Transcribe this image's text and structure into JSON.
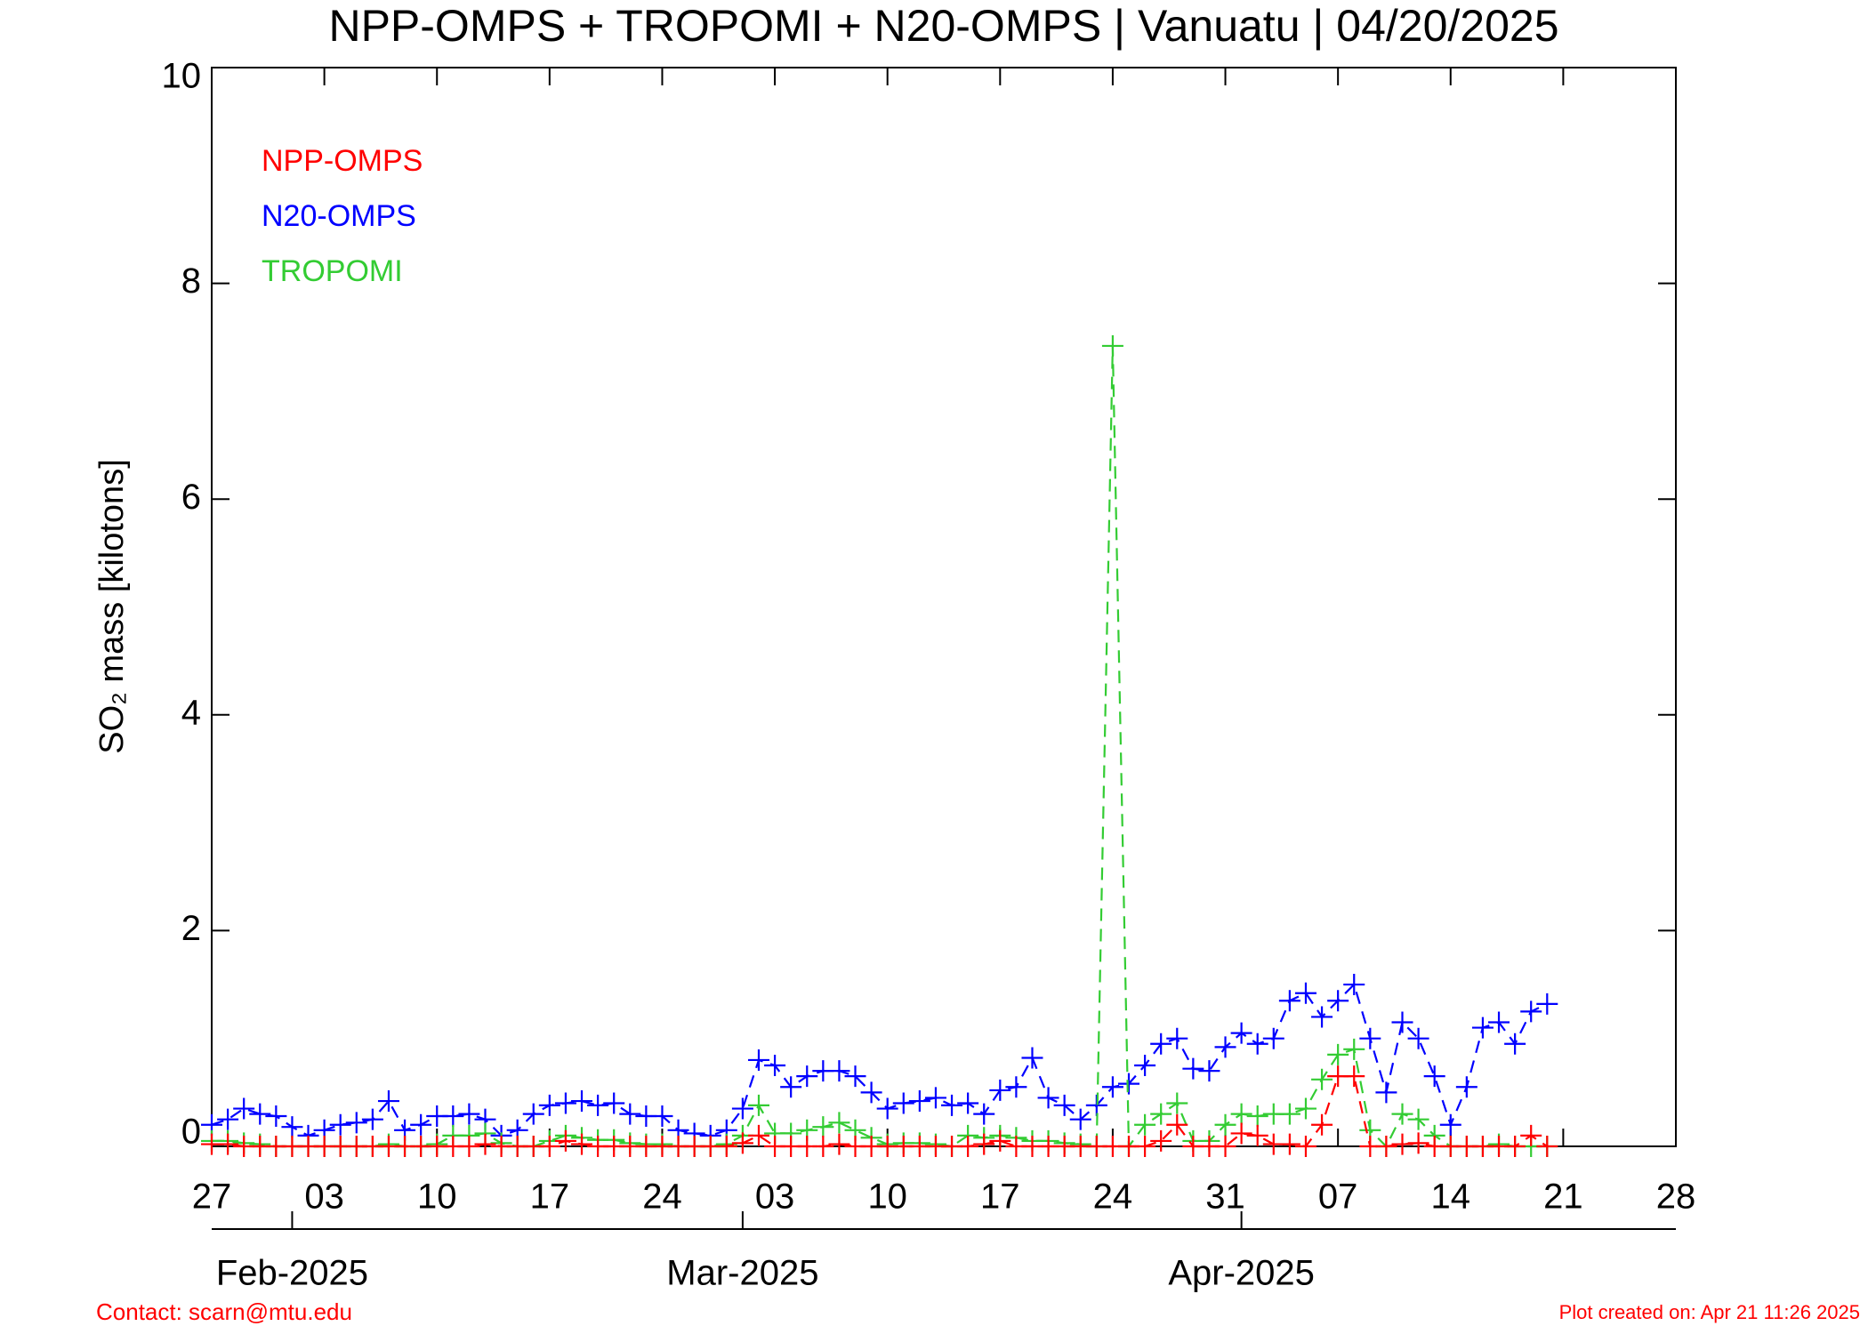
{
  "chart_data": {
    "type": "line",
    "title": "NPP-OMPS + TROPOMI + N20-OMPS | Vanuatu | 04/20/2025",
    "ylabel": "SO₂ mass [kilotons]",
    "x": [
      "2025-01-27",
      "2025-01-28",
      "2025-01-29",
      "2025-01-30",
      "2025-01-31",
      "2025-02-01",
      "2025-02-02",
      "2025-02-03",
      "2025-02-04",
      "2025-02-05",
      "2025-02-06",
      "2025-02-07",
      "2025-02-08",
      "2025-02-09",
      "2025-02-10",
      "2025-02-11",
      "2025-02-12",
      "2025-02-13",
      "2025-02-14",
      "2025-02-15",
      "2025-02-16",
      "2025-02-17",
      "2025-02-18",
      "2025-02-19",
      "2025-02-20",
      "2025-02-21",
      "2025-02-22",
      "2025-02-23",
      "2025-02-24",
      "2025-02-25",
      "2025-02-26",
      "2025-02-27",
      "2025-02-28",
      "2025-03-01",
      "2025-03-02",
      "2025-03-03",
      "2025-03-04",
      "2025-03-05",
      "2025-03-06",
      "2025-03-07",
      "2025-03-08",
      "2025-03-09",
      "2025-03-10",
      "2025-03-11",
      "2025-03-12",
      "2025-03-13",
      "2025-03-14",
      "2025-03-15",
      "2025-03-16",
      "2025-03-17",
      "2025-03-18",
      "2025-03-19",
      "2025-03-20",
      "2025-03-21",
      "2025-03-22",
      "2025-03-23",
      "2025-03-24",
      "2025-03-25",
      "2025-03-26",
      "2025-03-27",
      "2025-03-28",
      "2025-03-29",
      "2025-03-30",
      "2025-03-31",
      "2025-04-01",
      "2025-04-02",
      "2025-04-03",
      "2025-04-04",
      "2025-04-05",
      "2025-04-06",
      "2025-04-07",
      "2025-04-08",
      "2025-04-09",
      "2025-04-10",
      "2025-04-11",
      "2025-04-12",
      "2025-04-13",
      "2025-04-14",
      "2025-04-15",
      "2025-04-16",
      "2025-04-17",
      "2025-04-18",
      "2025-04-19",
      "2025-04-20"
    ],
    "series": [
      {
        "name": "NPP-OMPS",
        "color": "#ff0000",
        "values": [
          0.02,
          0.02,
          0,
          0,
          0,
          0,
          0,
          0,
          0,
          0,
          0,
          0,
          0,
          0,
          0,
          0,
          0,
          0.02,
          0,
          0,
          0,
          0,
          0.05,
          0.02,
          0,
          0,
          0,
          0,
          0,
          0,
          0,
          0,
          0,
          0.03,
          0.1,
          0,
          0,
          0,
          0,
          0.02,
          0,
          0,
          0,
          0,
          0,
          0,
          0,
          0,
          0.02,
          0.05,
          0,
          0,
          0,
          0,
          0,
          0,
          0,
          0,
          0,
          0.05,
          0.2,
          0,
          0,
          0,
          0.12,
          0.1,
          0.02,
          0.02,
          0,
          0.2,
          0.65,
          0.65,
          0,
          0,
          0.02,
          0.03,
          0,
          0,
          0,
          0,
          0,
          0,
          0.1,
          0
        ]
      },
      {
        "name": "N20-OMPS",
        "color": "#0000ff",
        "values": [
          0.2,
          0.25,
          0.35,
          0.3,
          0.28,
          0.18,
          0.1,
          0.15,
          0.2,
          0.22,
          0.25,
          0.42,
          0.15,
          0.2,
          0.28,
          0.28,
          0.3,
          0.25,
          0.1,
          0.15,
          0.3,
          0.38,
          0.4,
          0.42,
          0.38,
          0.4,
          0.3,
          0.28,
          0.28,
          0.15,
          0.12,
          0.1,
          0.15,
          0.35,
          0.8,
          0.75,
          0.55,
          0.65,
          0.7,
          0.7,
          0.65,
          0.5,
          0.35,
          0.4,
          0.42,
          0.45,
          0.38,
          0.4,
          0.3,
          0.52,
          0.55,
          0.82,
          0.45,
          0.38,
          0.25,
          0.38,
          0.55,
          0.58,
          0.75,
          0.95,
          1.0,
          0.72,
          0.7,
          0.92,
          1.05,
          0.95,
          1.0,
          1.35,
          1.42,
          1.2,
          1.35,
          1.5,
          1.0,
          0.5,
          1.15,
          1.0,
          0.65,
          0.2,
          0.55,
          1.1,
          1.15,
          0.95,
          1.25,
          1.32
        ]
      },
      {
        "name": "TROPOMI",
        "color": "#33cc33",
        "values": [
          0.05,
          0.05,
          0.03,
          0.02,
          0,
          0,
          0,
          0,
          0,
          0,
          0,
          0.02,
          0,
          0,
          0.02,
          0.1,
          0.1,
          0.12,
          0.03,
          0,
          0,
          0.05,
          0.1,
          0.08,
          0.06,
          0.06,
          0.03,
          0.02,
          0.02,
          0,
          0,
          0,
          0.02,
          0.1,
          0.38,
          0.12,
          0.12,
          0.15,
          0.18,
          0.22,
          0.15,
          0.08,
          0.02,
          0.03,
          0.03,
          0.02,
          0,
          0.1,
          0.08,
          0.1,
          0.08,
          0.05,
          0.05,
          0.03,
          0.02,
          0,
          7.42,
          0,
          0.2,
          0.3,
          0.4,
          0.05,
          0.05,
          0.2,
          0.3,
          0.28,
          0.3,
          0.3,
          0.35,
          0.62,
          0.85,
          0.9,
          0.15,
          0,
          0.3,
          0.25,
          0.1,
          0,
          0,
          0,
          0.02,
          0,
          0,
          0
        ]
      }
    ],
    "xlim": [
      "2025-01-27",
      "2025-04-28"
    ],
    "xticks": [
      {
        "value": "2025-01-27",
        "label": "27"
      },
      {
        "value": "2025-02-03",
        "label": "03"
      },
      {
        "value": "2025-02-10",
        "label": "10"
      },
      {
        "value": "2025-02-17",
        "label": "17"
      },
      {
        "value": "2025-02-24",
        "label": "24"
      },
      {
        "value": "2025-03-03",
        "label": "03"
      },
      {
        "value": "2025-03-10",
        "label": "10"
      },
      {
        "value": "2025-03-17",
        "label": "17"
      },
      {
        "value": "2025-03-24",
        "label": "24"
      },
      {
        "value": "2025-03-31",
        "label": "31"
      },
      {
        "value": "2025-04-07",
        "label": "07"
      },
      {
        "value": "2025-04-14",
        "label": "14"
      },
      {
        "value": "2025-04-21",
        "label": "21"
      },
      {
        "value": "2025-04-28",
        "label": "28"
      }
    ],
    "month_ticks": [
      {
        "value": "2025-02-01",
        "label": "Feb-2025"
      },
      {
        "value": "2025-03-01",
        "label": "Mar-2025"
      },
      {
        "value": "2025-04-01",
        "label": "Apr-2025"
      }
    ],
    "ylim": [
      0,
      10
    ],
    "yticks": [
      0,
      2,
      4,
      6,
      8,
      10
    ],
    "grid": false,
    "legend": "upper left",
    "contact": "Contact: scarn@mtu.edu",
    "created": "Plot created on: Apr 21 11:26 2025"
  }
}
